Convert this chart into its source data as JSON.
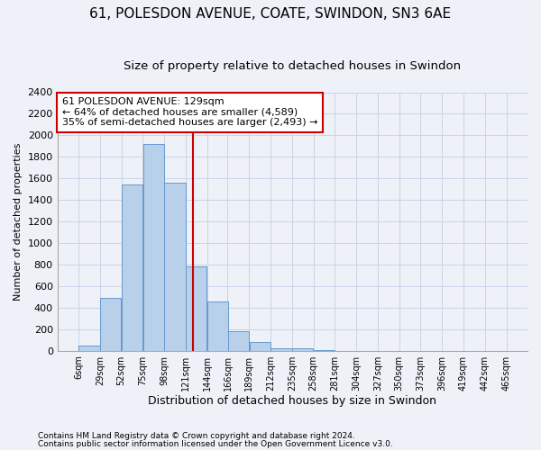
{
  "title1": "61, POLESDON AVENUE, COATE, SWINDON, SN3 6AE",
  "title2": "Size of property relative to detached houses in Swindon",
  "xlabel": "Distribution of detached houses by size in Swindon",
  "ylabel": "Number of detached properties",
  "footnote1": "Contains HM Land Registry data © Crown copyright and database right 2024.",
  "footnote2": "Contains public sector information licensed under the Open Government Licence v3.0.",
  "annotation_line1": "61 POLESDON AVENUE: 129sqm",
  "annotation_line2": "← 64% of detached houses are smaller (4,589)",
  "annotation_line3": "35% of semi-detached houses are larger (2,493) →",
  "bar_left_edges": [
    6,
    29,
    52,
    75,
    98,
    121,
    144,
    166,
    189,
    212,
    235,
    258,
    281,
    304,
    327,
    350,
    373,
    396,
    419,
    442
  ],
  "bar_heights": [
    50,
    490,
    1540,
    1920,
    1560,
    780,
    460,
    185,
    80,
    25,
    20,
    5,
    0,
    0,
    0,
    0,
    0,
    0,
    0,
    0
  ],
  "bin_width": 23,
  "bar_color": "#b8d0ea",
  "bar_edge_color": "#6699cc",
  "vline_color": "#cc0000",
  "vline_x": 129,
  "annotation_box_color": "#ffffff",
  "annotation_box_edge_color": "#cc0000",
  "ylim": [
    0,
    2400
  ],
  "yticks": [
    0,
    200,
    400,
    600,
    800,
    1000,
    1200,
    1400,
    1600,
    1800,
    2000,
    2200,
    2400
  ],
  "xtick_labels": [
    "6sqm",
    "29sqm",
    "52sqm",
    "75sqm",
    "98sqm",
    "121sqm",
    "144sqm",
    "166sqm",
    "189sqm",
    "212sqm",
    "235sqm",
    "258sqm",
    "281sqm",
    "304sqm",
    "327sqm",
    "350sqm",
    "373sqm",
    "396sqm",
    "419sqm",
    "442sqm",
    "465sqm"
  ],
  "grid_color": "#c8d4e8",
  "bg_color": "#eef2f8",
  "title1_fontsize": 11,
  "title2_fontsize": 9.5,
  "xlabel_fontsize": 9,
  "ylabel_fontsize": 8,
  "annotation_fontsize": 8,
  "footnote_fontsize": 6.5
}
